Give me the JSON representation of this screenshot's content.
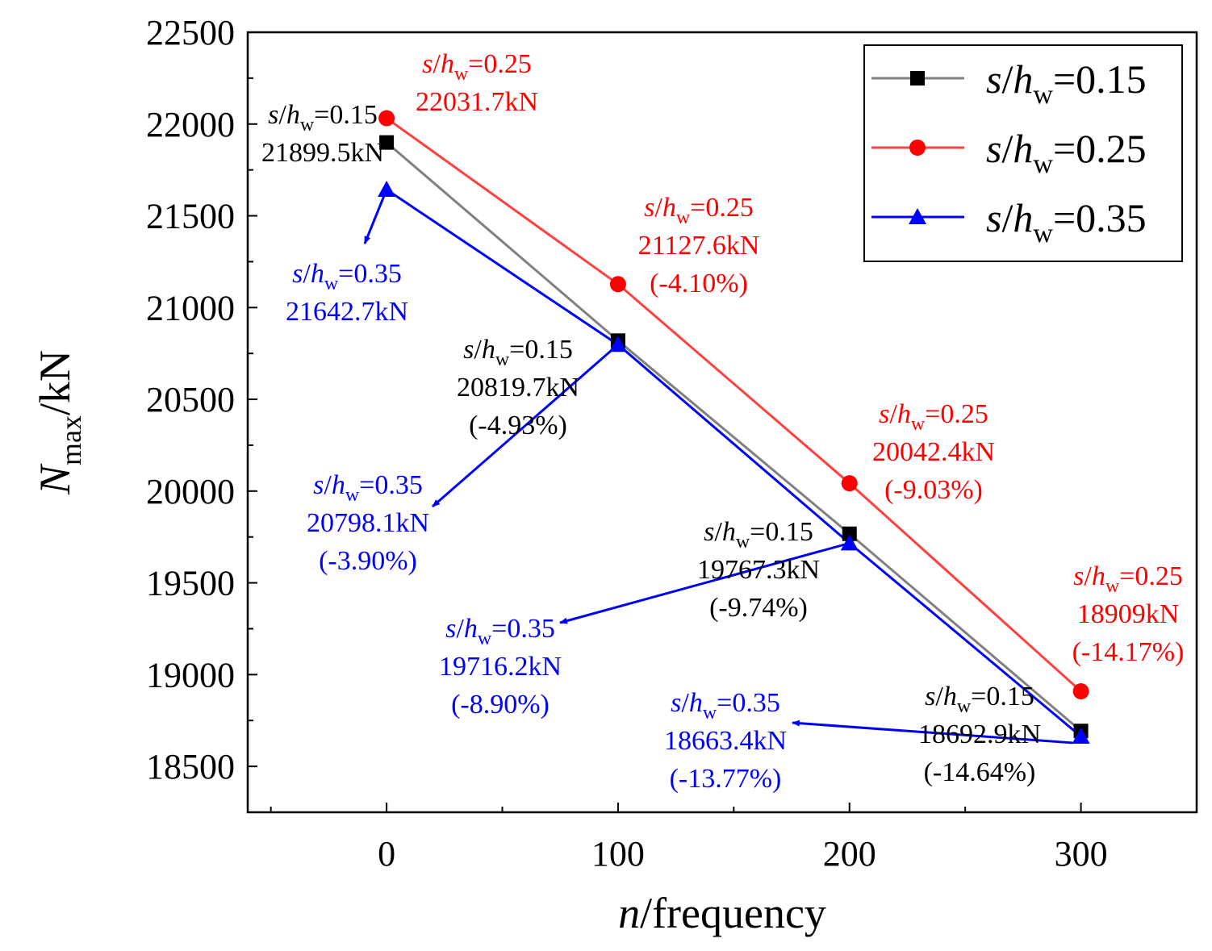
{
  "chart_data": {
    "type": "line",
    "xlabel": {
      "italic": "n",
      "rest": "/frequency"
    },
    "ylabel": {
      "italic": "N",
      "sub": "max",
      "rest": "/kN"
    },
    "xlim": [
      -60,
      350
    ],
    "ylim": [
      18250,
      22500
    ],
    "xticks": [
      0,
      100,
      200,
      300
    ],
    "xminor": [
      -50,
      50,
      150,
      250
    ],
    "yticks": [
      18500,
      19000,
      19500,
      20000,
      20500,
      21000,
      21500,
      22000,
      22500
    ],
    "x": [
      0,
      100,
      200,
      300
    ],
    "colors": {
      "s015": "#000000",
      "s025": "#ff0000",
      "s035": "#0000ff"
    },
    "series": [
      {
        "key": "s015",
        "name": "s/hw=0.15",
        "values": [
          21899.5,
          20819.7,
          19767.3,
          18692.9
        ],
        "line": "#808080",
        "marker": "square",
        "markerColor": "#000000"
      },
      {
        "key": "s025",
        "name": "s/hw=0.25",
        "values": [
          22031.7,
          21127.6,
          20042.4,
          18909
        ],
        "line": "#ff4040",
        "marker": "circle",
        "markerColor": "#ff0000"
      },
      {
        "key": "s035",
        "name": "s/hw=0.35",
        "values": [
          21642.7,
          20798.1,
          19716.2,
          18663.4
        ],
        "line": "#0000ff",
        "marker": "triangle",
        "markerColor": "#0000ff"
      }
    ],
    "legend": {
      "position": "top-right",
      "entries": [
        {
          "key": "s015",
          "label": "s/hw=0.15"
        },
        {
          "key": "s025",
          "label": "s/hw=0.25"
        },
        {
          "key": "s035",
          "label": "s/hw=0.35"
        }
      ]
    },
    "annotations": [
      {
        "series": "s015",
        "point": 0,
        "value": "21899.5kN",
        "pct": ""
      },
      {
        "series": "s015",
        "point": 1,
        "value": "20819.7kN",
        "pct": "(-4.93%)"
      },
      {
        "series": "s015",
        "point": 2,
        "value": "19767.3kN",
        "pct": "(-9.74%)"
      },
      {
        "series": "s015",
        "point": 3,
        "value": "18692.9kN",
        "pct": "(-14.64%)"
      },
      {
        "series": "s025",
        "point": 0,
        "value": "22031.7kN",
        "pct": ""
      },
      {
        "series": "s025",
        "point": 1,
        "value": "21127.6kN",
        "pct": "(-4.10%)"
      },
      {
        "series": "s025",
        "point": 2,
        "value": "20042.4kN",
        "pct": "(-9.03%)"
      },
      {
        "series": "s025",
        "point": 3,
        "value": "18909kN",
        "pct": "(-14.17%)"
      },
      {
        "series": "s035",
        "point": 0,
        "value": "21642.7kN",
        "pct": ""
      },
      {
        "series": "s035",
        "point": 1,
        "value": "20798.1kN",
        "pct": "(-3.90%)"
      },
      {
        "series": "s035",
        "point": 2,
        "value": "19716.2kN",
        "pct": "(-8.90%)"
      },
      {
        "series": "s035",
        "point": 3,
        "value": "18663.4kN",
        "pct": "(-13.77%)"
      }
    ],
    "label_prefix": {
      "italic1": "s",
      "slash": "/",
      "italic2": "h",
      "sub": "w"
    }
  }
}
